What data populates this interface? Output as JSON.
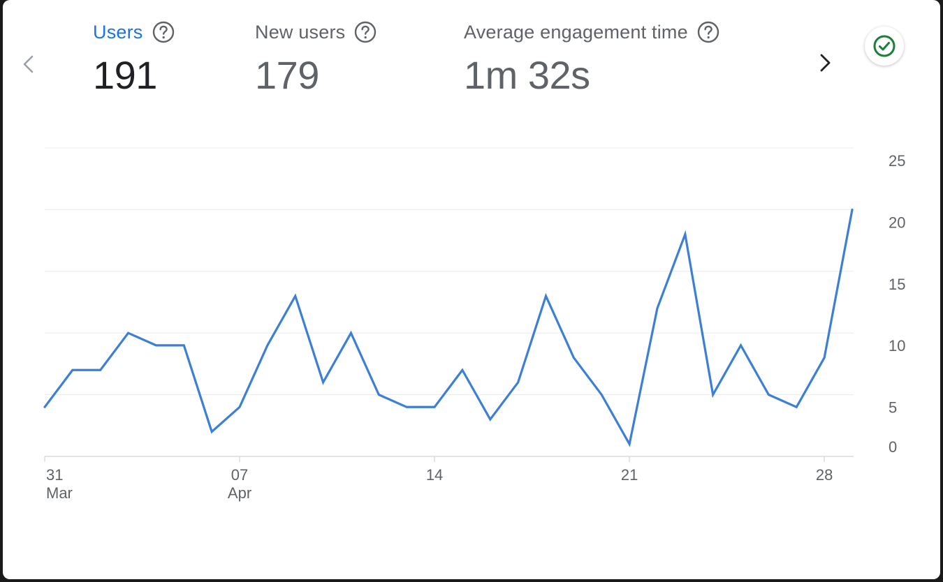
{
  "metrics": [
    {
      "label": "Users",
      "value": "191"
    },
    {
      "label": "New users",
      "value": "179"
    },
    {
      "label": "Average engagement time",
      "value": "1m 32s"
    }
  ],
  "icons": {
    "prev": "chevron-left-icon",
    "next": "chevron-right-icon",
    "help": "help-circle-icon",
    "status": "check-circle-icon"
  },
  "colors": {
    "accent": "#1a73e8",
    "line": "#3b7fd6",
    "status": "#188038"
  },
  "chart_data": {
    "type": "line",
    "x": [
      "2024-03-31",
      "2024-04-01",
      "2024-04-02",
      "2024-04-03",
      "2024-04-04",
      "2024-04-05",
      "2024-04-06",
      "2024-04-07",
      "2024-04-08",
      "2024-04-09",
      "2024-04-10",
      "2024-04-11",
      "2024-04-12",
      "2024-04-13",
      "2024-04-14",
      "2024-04-15",
      "2024-04-16",
      "2024-04-17",
      "2024-04-18",
      "2024-04-19",
      "2024-04-20",
      "2024-04-21",
      "2024-04-22",
      "2024-04-23",
      "2024-04-24",
      "2024-04-25",
      "2024-04-26",
      "2024-04-27",
      "2024-04-28",
      "2024-04-29"
    ],
    "series": [
      {
        "values": [
          4,
          7,
          7,
          10,
          9,
          9,
          2,
          4,
          9,
          13,
          6,
          10,
          5,
          4,
          4,
          7,
          3,
          6,
          13,
          8,
          5,
          1,
          12,
          18,
          5,
          9,
          5,
          4,
          8,
          20
        ]
      }
    ],
    "ylim": [
      0,
      25
    ],
    "yticks": [
      "0",
      "5",
      "10",
      "15",
      "20",
      "25"
    ],
    "xticks": [
      {
        "x": "2024-03-31",
        "day": "31",
        "month": "Mar"
      },
      {
        "x": "2024-04-07",
        "day": "07",
        "month": "Apr"
      },
      {
        "x": "2024-04-14",
        "day": "14",
        "month": ""
      },
      {
        "x": "2024-04-21",
        "day": "21",
        "month": ""
      },
      {
        "x": "2024-04-28",
        "day": "28",
        "month": ""
      }
    ],
    "grid": true,
    "y_axis_side": "right"
  }
}
